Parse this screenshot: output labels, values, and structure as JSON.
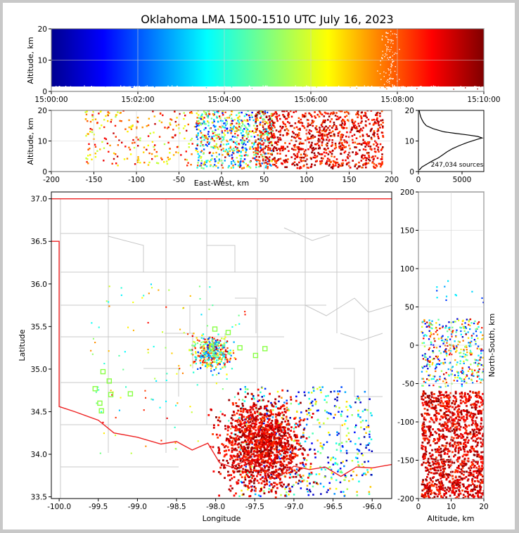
{
  "chart_data": {
    "title": "Oklahoma LMA 1500-1510 UTC July 16, 2023",
    "source_count_label": "247,034 sources",
    "time_height": {
      "type": "scatter",
      "ylabel": "Altitude, km",
      "xlim": [
        "15:00:00",
        "15:10:00"
      ],
      "ylim": [
        0,
        20
      ],
      "xticks": [
        "15:00:00",
        "15:02:00",
        "15:04:00",
        "15:06:00",
        "15:08:00",
        "15:10:00"
      ],
      "yticks": [
        0,
        10,
        20
      ],
      "colormap": "jet (time)"
    },
    "east_west": {
      "type": "scatter",
      "xlabel": "East-West, km",
      "ylabel": "Altitude, km",
      "xlim": [
        -200,
        200
      ],
      "ylim": [
        0,
        20
      ],
      "xticks": [
        -200,
        -150,
        -100,
        -50,
        0,
        50,
        100,
        150,
        200
      ],
      "yticks": [
        0,
        10,
        20
      ]
    },
    "altitude_histogram": {
      "type": "line",
      "xlim": [
        0,
        7500
      ],
      "ylim": [
        0,
        20
      ],
      "xticks": [
        0,
        5000
      ],
      "yticks": [
        0,
        10,
        20
      ],
      "points": [
        [
          100,
          0.5
        ],
        [
          400,
          1.5
        ],
        [
          1000,
          2.5
        ],
        [
          1600,
          3.5
        ],
        [
          2300,
          4.5
        ],
        [
          2800,
          5.5
        ],
        [
          3300,
          6.5
        ],
        [
          3900,
          7.5
        ],
        [
          4700,
          8.5
        ],
        [
          5600,
          9.5
        ],
        [
          6700,
          10.5
        ],
        [
          7300,
          11.0
        ],
        [
          6800,
          11.5
        ],
        [
          5600,
          12.0
        ],
        [
          4200,
          12.5
        ],
        [
          2900,
          13.0
        ],
        [
          1700,
          14.0
        ],
        [
          900,
          15.0
        ],
        [
          600,
          16.0
        ],
        [
          400,
          17.0
        ],
        [
          250,
          18.0
        ],
        [
          150,
          19.0
        ],
        [
          100,
          20.0
        ]
      ]
    },
    "plan_view": {
      "type": "scatter",
      "xlabel": "Longitude",
      "ylabel": "Latitude",
      "xlim": [
        -100.1,
        -95.75
      ],
      "ylim": [
        33.48,
        37.08
      ],
      "xticks": [
        -100.0,
        -99.5,
        -99.0,
        -98.5,
        -98.0,
        -97.5,
        -97.0,
        -96.5,
        -96.0
      ],
      "yticks": [
        33.5,
        34.0,
        34.5,
        35.0,
        35.5,
        36.0,
        36.5,
        37.0
      ],
      "stations": [
        [
          -99.44,
          34.97
        ],
        [
          -99.36,
          34.86
        ],
        [
          -99.34,
          34.7
        ],
        [
          -99.46,
          34.51
        ],
        [
          -99.54,
          34.77
        ],
        [
          -99.48,
          34.6
        ],
        [
          -99.09,
          34.71
        ],
        [
          -98.01,
          35.47
        ],
        [
          -97.84,
          35.43
        ],
        [
          -97.69,
          35.25
        ],
        [
          -97.49,
          35.16
        ],
        [
          -97.37,
          35.24
        ],
        [
          -98.05,
          35.26
        ]
      ]
    },
    "north_south": {
      "type": "scatter",
      "xlabel": "Altitude, km",
      "ylabel": "North-South, km",
      "xlim": [
        0,
        20
      ],
      "ylim": [
        -200,
        200
      ],
      "xticks": [
        0,
        10,
        20
      ],
      "yticks": [
        -200,
        -150,
        -100,
        -50,
        0,
        50,
        100,
        150,
        200
      ]
    }
  }
}
